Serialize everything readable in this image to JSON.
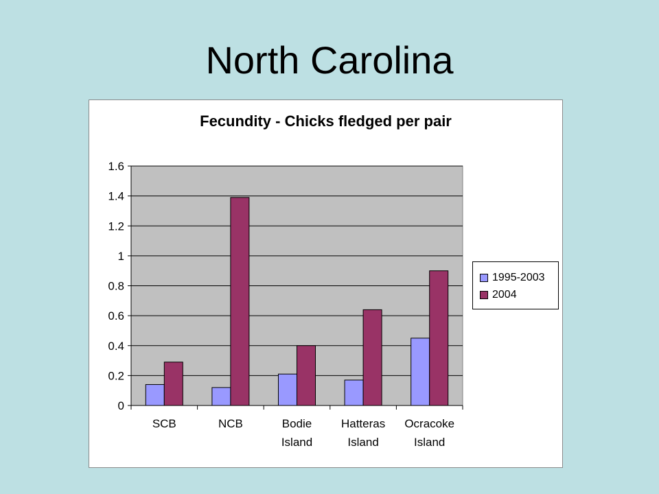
{
  "slide": {
    "title": "North Carolina"
  },
  "chart_data": {
    "type": "bar",
    "title": "Fecundity - Chicks fledged per pair",
    "categories": [
      [
        "SCB"
      ],
      [
        "NCB"
      ],
      [
        "Bodie",
        "Island"
      ],
      [
        "Hatteras",
        "Island"
      ],
      [
        "Ocracoke",
        "Island"
      ]
    ],
    "series": [
      {
        "name": "1995-2003",
        "color": "#9999ff",
        "values": [
          0.14,
          0.12,
          0.21,
          0.17,
          0.45
        ]
      },
      {
        "name": "2004",
        "color": "#993366",
        "values": [
          0.29,
          1.39,
          0.4,
          0.64,
          0.9
        ]
      }
    ],
    "ylim": [
      0,
      1.6
    ],
    "yticks": [
      "0",
      "0.2",
      "0.4",
      "0.6",
      "0.8",
      "1",
      "1.2",
      "1.4",
      "1.6"
    ],
    "grid": true,
    "plot_background": "#c0c0c0",
    "legend_position": "right"
  }
}
